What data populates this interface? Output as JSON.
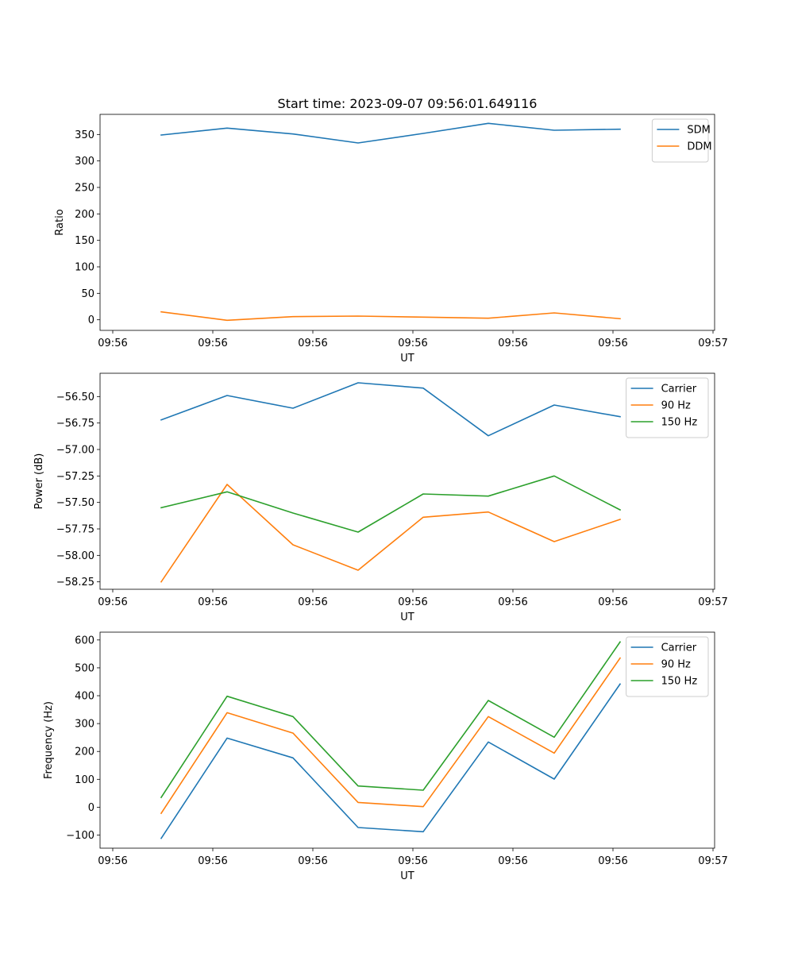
{
  "figure_title": "Start time: 2023-09-07 09:56:01.649116",
  "chart_data": [
    {
      "type": "line",
      "title": "Start time: 2023-09-07 09:56:01.649116",
      "xlabel": "UT",
      "ylabel": "Ratio",
      "x_tick_labels": [
        "09:56",
        "09:56",
        "09:56",
        "09:56",
        "09:56",
        "09:56",
        "09:56",
        "09:57"
      ],
      "y_ticks": [
        0,
        50,
        100,
        150,
        200,
        250,
        300,
        350
      ],
      "y_tick_labels": [
        "0",
        "50",
        "100",
        "150",
        "200",
        "250",
        "300",
        "350"
      ],
      "ylim": [
        -20,
        388
      ],
      "legend_position": "top-right",
      "grid": false,
      "series": [
        {
          "name": "SDM",
          "color": "#1f77b4",
          "values": [
            349,
            362,
            351,
            334,
            352,
            371,
            358,
            360
          ]
        },
        {
          "name": "DDM",
          "color": "#ff7f0e",
          "values": [
            15,
            -1,
            6,
            7,
            5,
            3,
            13,
            2
          ]
        }
      ]
    },
    {
      "type": "line",
      "xlabel": "UT",
      "ylabel": "Power (dB)",
      "x_tick_labels": [
        "09:56",
        "09:56",
        "09:56",
        "09:56",
        "09:56",
        "09:56",
        "09:56",
        "09:57"
      ],
      "y_ticks": [
        -58.25,
        -58.0,
        -57.75,
        -57.5,
        -57.25,
        -57.0,
        -56.75,
        -56.5
      ],
      "y_tick_labels": [
        "−58.25",
        "−58.00",
        "−57.75",
        "−57.50",
        "−57.25",
        "−57.00",
        "−56.75",
        "−56.50"
      ],
      "ylim": [
        -58.32,
        -56.28
      ],
      "legend_position": "top-right",
      "grid": false,
      "series": [
        {
          "name": "Carrier",
          "color": "#1f77b4",
          "values": [
            -56.72,
            -56.49,
            -56.61,
            -56.37,
            -56.42,
            -56.87,
            -56.58,
            -56.69
          ]
        },
        {
          "name": "90 Hz",
          "color": "#ff7f0e",
          "values": [
            -58.25,
            -57.33,
            -57.9,
            -58.14,
            -57.64,
            -57.59,
            -57.87,
            -57.66
          ]
        },
        {
          "name": "150 Hz",
          "color": "#2ca02c",
          "values": [
            -57.55,
            -57.4,
            -57.6,
            -57.78,
            -57.42,
            -57.44,
            -57.25,
            -57.57
          ]
        }
      ]
    },
    {
      "type": "line",
      "xlabel": "UT",
      "ylabel": "Frequency (Hz)",
      "x_tick_labels": [
        "09:56",
        "09:56",
        "09:56",
        "09:56",
        "09:56",
        "09:56",
        "09:56",
        "09:57"
      ],
      "y_ticks": [
        -100,
        0,
        100,
        200,
        300,
        400,
        500,
        600
      ],
      "y_tick_labels": [
        "−100",
        "0",
        "100",
        "200",
        "300",
        "400",
        "500",
        "600"
      ],
      "ylim": [
        -147,
        628
      ],
      "legend_position": "top-right",
      "grid": false,
      "series": [
        {
          "name": "Carrier",
          "color": "#1f77b4",
          "values": [
            -112,
            248,
            177,
            -73,
            -88,
            234,
            101,
            442
          ]
        },
        {
          "name": "90 Hz",
          "color": "#ff7f0e",
          "values": [
            -22,
            339,
            266,
            17,
            2,
            325,
            194,
            535
          ]
        },
        {
          "name": "150 Hz",
          "color": "#2ca02c",
          "values": [
            35,
            398,
            325,
            76,
            61,
            383,
            251,
            593
          ]
        }
      ]
    }
  ]
}
